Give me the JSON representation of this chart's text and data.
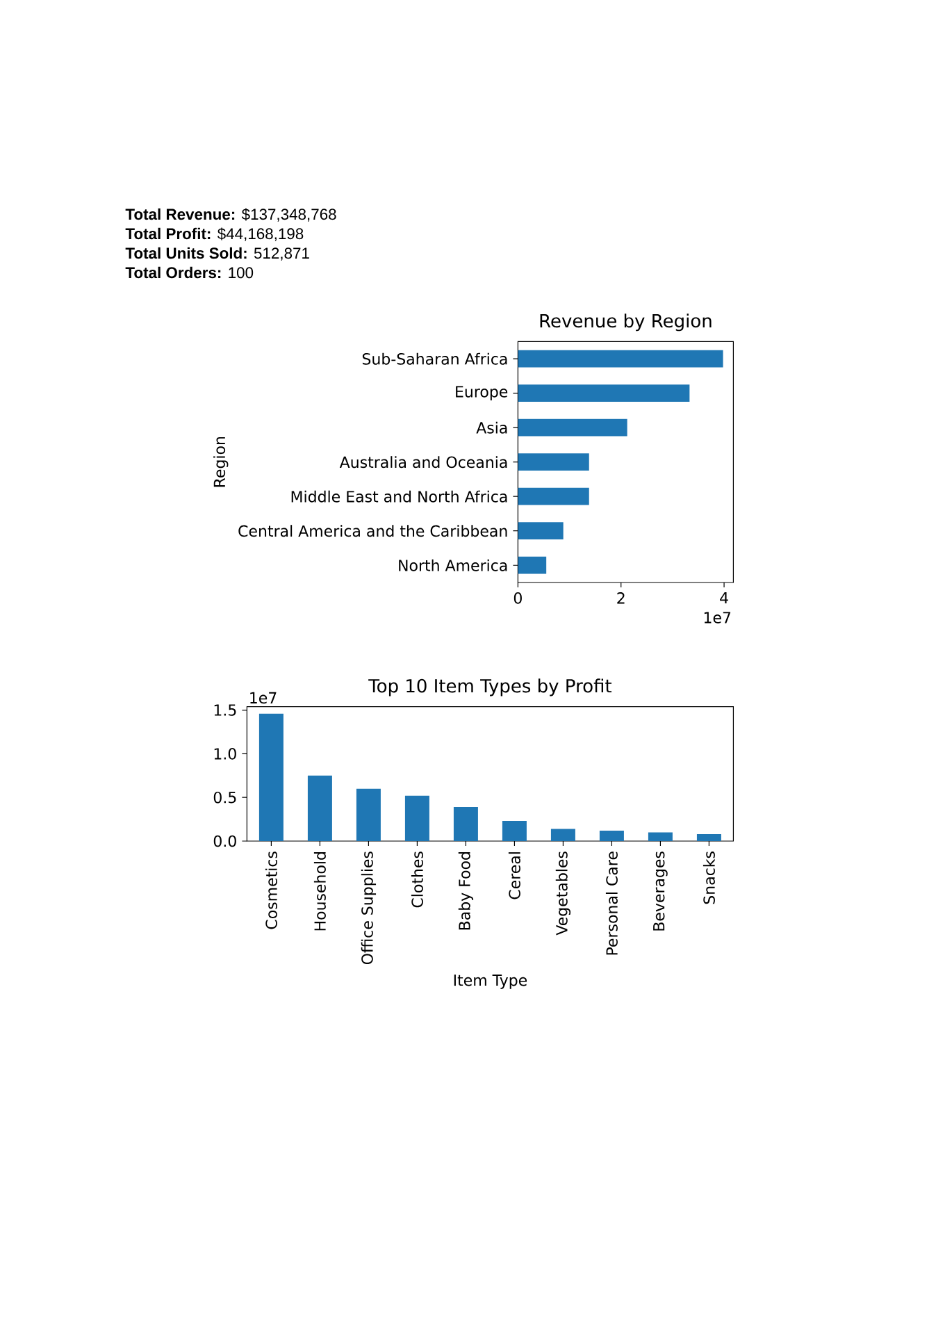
{
  "chart_data": [
    {
      "type": "other",
      "annotations": [
        "**Total Revenue:** $137,348,768",
        "**Total Profit:** $44,168,198",
        "**Total Units Sold:** 512,871",
        "**Total Orders:** 100"
      ]
    },
    {
      "type": "bar",
      "orientation": "horizontal",
      "title": "Revenue by Region",
      "ylabel": "Region",
      "categories": [
        "Sub-Saharan Africa",
        "Europe",
        "Asia",
        "Australia and Oceania",
        "Middle East and North Africa",
        "Central America and the Caribbean",
        "North America"
      ],
      "values": [
        3.98,
        3.33,
        2.12,
        1.38,
        1.38,
        0.88,
        0.55
      ],
      "color": "#1f77b4",
      "xlim": [
        0,
        4.18
      ],
      "xticks": [
        0,
        2,
        4
      ],
      "annotations": [
        "1e7"
      ]
    },
    {
      "type": "bar",
      "title": "Top 10 Item Types by Profit",
      "xlabel": "Item Type",
      "categories": [
        "Cosmetics",
        "Household",
        "Office Supplies",
        "Clothes",
        "Baby Food",
        "Cereal",
        "Vegetables",
        "Personal Care",
        "Beverages",
        "Snacks"
      ],
      "values": [
        1.46,
        0.75,
        0.6,
        0.52,
        0.39,
        0.23,
        0.14,
        0.12,
        0.1,
        0.08
      ],
      "color": "#1f77b4",
      "ylim": [
        0,
        1.54
      ],
      "yticks": [
        {
          "value": 0,
          "label": "0.0"
        },
        0.5,
        {
          "value": 1,
          "label": "1.0"
        },
        1.5
      ],
      "annotations": [
        "1e7"
      ]
    }
  ]
}
